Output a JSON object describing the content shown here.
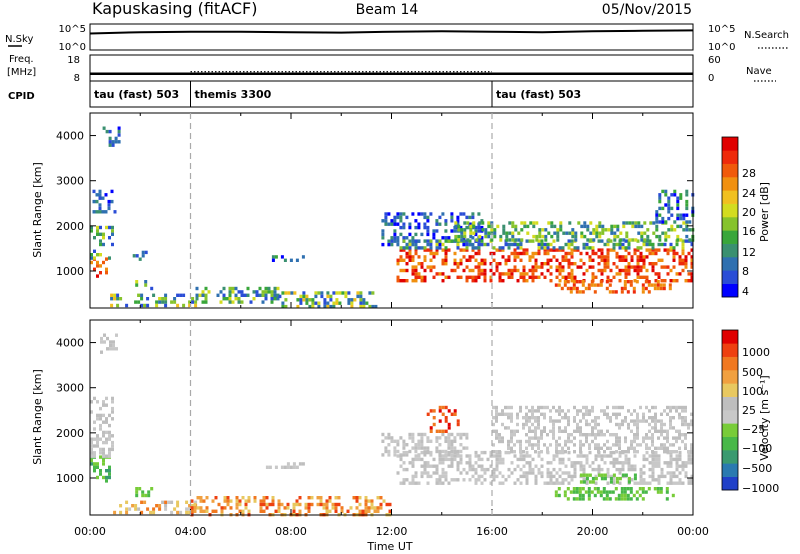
{
  "header": {
    "station": "Kapuskasing (fitACF)",
    "beam": "Beam 14",
    "date": "05/Nov/2015"
  },
  "chart_data": [
    {
      "type": "line",
      "panel": "nsky-nsearch",
      "left_label": "N.Sky",
      "right_label": "N.Search",
      "left_ticks": [
        "10^5",
        "10^0"
      ],
      "right_ticks": [
        "10^5",
        "10^0"
      ],
      "series": [
        {
          "x_hours": [
            0,
            2,
            4,
            6,
            8,
            10,
            12,
            14,
            16,
            18,
            20,
            22,
            24
          ],
          "values_log10": [
            3.3,
            3.6,
            3.7,
            3.7,
            3.6,
            3.5,
            3.7,
            3.8,
            3.7,
            3.6,
            3.8,
            3.9,
            4.0
          ]
        }
      ]
    },
    {
      "type": "line",
      "panel": "freq-nave",
      "left_label_line1": "Freq.",
      "left_label_line2": "[MHz]",
      "right_label": "Nave",
      "left_ticks": [
        "18",
        "8"
      ],
      "right_ticks": [
        "60",
        "0"
      ],
      "series": [
        {
          "x_hours": [
            0,
            24
          ],
          "freq_mhz": [
            10.4,
            10.4
          ]
        },
        {
          "x_hours": [
            4,
            16
          ],
          "nave": [
            20,
            20
          ]
        }
      ]
    },
    {
      "type": "table",
      "panel": "cpid",
      "label": "CPID",
      "segments": [
        {
          "start_hours": 0,
          "end_hours": 4,
          "label": "tau (fast) 503"
        },
        {
          "start_hours": 4,
          "end_hours": 16,
          "label": "themis 3300"
        },
        {
          "start_hours": 16,
          "end_hours": 24,
          "label": "tau (fast) 503"
        }
      ]
    },
    {
      "type": "heatmap",
      "panel": "power",
      "ylabel": "Slant Range [km]",
      "xlim_hours": [
        0,
        24
      ],
      "ylim_km": [
        180,
        4500
      ],
      "yticks": [
        1000,
        2000,
        3000,
        4000
      ],
      "colorbar_label": "Power [dB]",
      "colorbar_ticks": [
        "28",
        "24",
        "20",
        "16",
        "12",
        "8",
        "4"
      ],
      "colors": [
        "#0000ff",
        "#2a4dd6",
        "#2f70b0",
        "#3a9070",
        "#39a63a",
        "#86c32c",
        "#d3dc20",
        "#f0c020",
        "#f09010",
        "#f05a0a",
        "#ee2a0a",
        "#e00000"
      ],
      "regions": [
        {
          "t0": 0,
          "t1": 0.7,
          "r0": 900,
          "r1": 1300,
          "c": [
            8,
            11
          ]
        },
        {
          "t0": 0,
          "t1": 0.9,
          "r0": 1300,
          "r1": 2000,
          "c": [
            1,
            6
          ]
        },
        {
          "t0": 0.1,
          "t1": 1.0,
          "r0": 2300,
          "r1": 2800,
          "c": [
            0,
            3
          ]
        },
        {
          "t0": 0.5,
          "t1": 1.2,
          "r0": 3800,
          "r1": 4200,
          "c": [
            0,
            3
          ]
        },
        {
          "t0": 1.7,
          "t1": 2.4,
          "r0": 1250,
          "r1": 1450,
          "c": [
            0,
            4
          ]
        },
        {
          "t0": 1.8,
          "t1": 2.6,
          "r0": 600,
          "r1": 800,
          "c": [
            1,
            7
          ]
        },
        {
          "t0": 0.8,
          "t1": 4.2,
          "r0": 200,
          "r1": 500,
          "c": [
            1,
            7
          ]
        },
        {
          "t0": 4.2,
          "t1": 7.5,
          "r0": 300,
          "r1": 650,
          "c": [
            1,
            6
          ]
        },
        {
          "t0": 7.0,
          "t1": 8.6,
          "r0": 1200,
          "r1": 1350,
          "c": [
            0,
            4
          ]
        },
        {
          "t0": 7.5,
          "t1": 11.5,
          "r0": 200,
          "r1": 550,
          "c": [
            1,
            7
          ]
        },
        {
          "t0": 11.6,
          "t1": 15.6,
          "r0": 1600,
          "r1": 2300,
          "c": [
            0,
            3
          ]
        },
        {
          "t0": 12.2,
          "t1": 24,
          "r0": 800,
          "r1": 1500,
          "c": [
            8,
            11
          ]
        },
        {
          "t0": 12.2,
          "t1": 24,
          "r0": 1500,
          "r1": 1700,
          "c": [
            1,
            6
          ]
        },
        {
          "t0": 14.5,
          "t1": 24,
          "r0": 1700,
          "r1": 2100,
          "c": [
            2,
            6
          ]
        },
        {
          "t0": 18.5,
          "t1": 23.2,
          "r0": 500,
          "r1": 800,
          "c": [
            8,
            10
          ]
        },
        {
          "t0": 22.5,
          "t1": 24,
          "r0": 2100,
          "r1": 2800,
          "c": [
            0,
            4
          ]
        }
      ]
    },
    {
      "type": "heatmap",
      "panel": "velocity",
      "ylabel": "Slant Range [km]",
      "xlabel": "Time UT",
      "xlim_hours": [
        0,
        24
      ],
      "ylim_km": [
        180,
        4500
      ],
      "yticks": [
        1000,
        2000,
        3000,
        4000
      ],
      "xticks": [
        "00:00",
        "04:00",
        "08:00",
        "12:00",
        "16:00",
        "20:00",
        "00:00"
      ],
      "colorbar_label": "Velocity [m s⁻¹]",
      "colorbar_ticks": [
        "1000",
        "500",
        "100",
        "25",
        "−25",
        "−100",
        "−500",
        "−1000"
      ],
      "colors": [
        "#2040c8",
        "#2a7ab0",
        "#3a9a70",
        "#48b848",
        "#78cc38",
        "#c8c8c8",
        "#bebebe",
        "#e8c860",
        "#f0a040",
        "#f07820",
        "#ee4010",
        "#e00000"
      ],
      "regions": [
        {
          "t0": 0,
          "t1": 0.8,
          "r0": 900,
          "r1": 1500,
          "c": [
            2,
            4
          ]
        },
        {
          "t0": 0,
          "t1": 0.9,
          "r0": 1500,
          "r1": 2800,
          "c": [
            5,
            6
          ]
        },
        {
          "t0": 0.4,
          "t1": 1.0,
          "r0": 3800,
          "r1": 4200,
          "c": [
            5,
            6
          ]
        },
        {
          "t0": 1.8,
          "t1": 2.5,
          "r0": 600,
          "r1": 800,
          "c": [
            3,
            4
          ]
        },
        {
          "t0": 0.8,
          "t1": 4.2,
          "r0": 200,
          "r1": 500,
          "c": [
            5,
            9
          ]
        },
        {
          "t0": 4.0,
          "t1": 12.0,
          "r0": 200,
          "r1": 600,
          "c": [
            7,
            10
          ]
        },
        {
          "t0": 7.0,
          "t1": 8.6,
          "r0": 1200,
          "r1": 1350,
          "c": [
            5,
            6
          ]
        },
        {
          "t0": 11.6,
          "t1": 15.0,
          "r0": 1500,
          "r1": 2000,
          "c": [
            5,
            6
          ]
        },
        {
          "t0": 13.4,
          "t1": 14.6,
          "r0": 2000,
          "r1": 2600,
          "c": [
            9,
            11
          ]
        },
        {
          "t0": 12.2,
          "t1": 24,
          "r0": 900,
          "r1": 1600,
          "c": [
            5,
            6
          ]
        },
        {
          "t0": 16.0,
          "t1": 24,
          "r0": 1600,
          "r1": 2600,
          "c": [
            5,
            6
          ]
        },
        {
          "t0": 18.5,
          "t1": 23.2,
          "r0": 550,
          "r1": 800,
          "c": [
            3,
            4
          ]
        },
        {
          "t0": 19.5,
          "t1": 22.0,
          "r0": 900,
          "r1": 1100,
          "c": [
            3,
            4
          ]
        }
      ]
    }
  ]
}
